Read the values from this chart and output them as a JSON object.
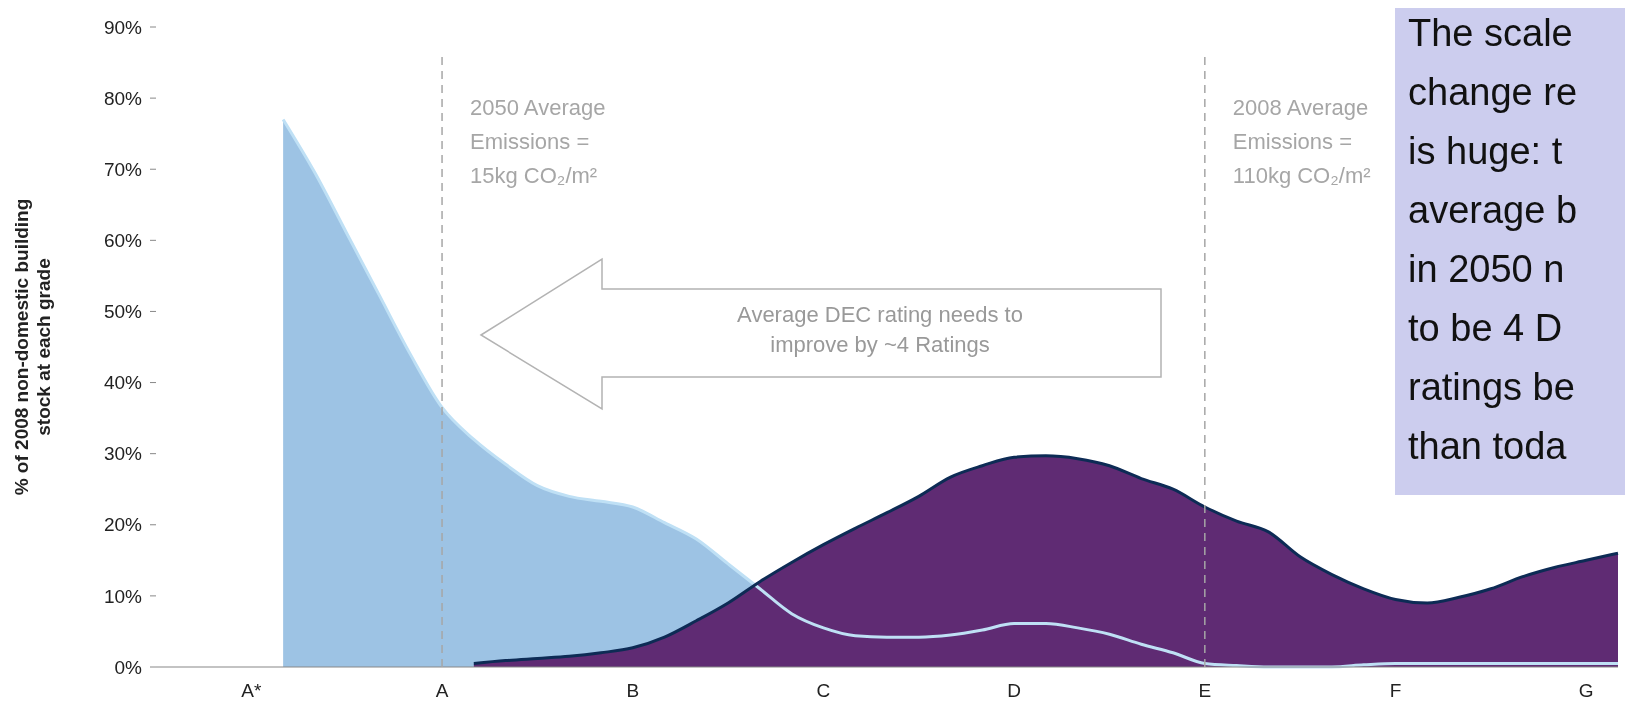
{
  "chart_data": {
    "type": "area",
    "ylabel": "% of 2008 non-domestic building\nstock at each grade",
    "categories": [
      null,
      null,
      null,
      "A*",
      null,
      null,
      null,
      null,
      null,
      "A",
      null,
      null,
      null,
      null,
      null,
      "B",
      null,
      null,
      null,
      null,
      null,
      "C",
      null,
      null,
      null,
      null,
      null,
      "D",
      null,
      null,
      null,
      null,
      null,
      "E",
      null,
      null,
      null,
      null,
      null,
      "F",
      null,
      null,
      null,
      null,
      null,
      "G",
      null
    ],
    "ylim": [
      0,
      90
    ],
    "yticks": [
      {
        "value": 0,
        "label": "0%"
      },
      {
        "value": 10,
        "label": "10%"
      },
      {
        "value": 20,
        "label": "20%"
      },
      {
        "value": 30,
        "label": "30%"
      },
      {
        "value": 40,
        "label": "40%"
      },
      {
        "value": 50,
        "label": "50%"
      },
      {
        "value": 60,
        "label": "60%"
      },
      {
        "value": 70,
        "label": "70%"
      },
      {
        "value": 80,
        "label": "80%"
      },
      {
        "value": 90,
        "label": "90%"
      }
    ],
    "series": [
      {
        "color": "#9dc3e4",
        "values": [
          null,
          null,
          null,
          null,
          77,
          69.5,
          61,
          52.5,
          44,
          36.5,
          32,
          28.5,
          25.5,
          24,
          23.3,
          22.5,
          20.3,
          18,
          14.5,
          11,
          7.5,
          5.5,
          4.4,
          4.2,
          4.2,
          4.5,
          5.2,
          6.1,
          6.1,
          5.5,
          4.6,
          3.2,
          2,
          0.5,
          0.2,
          0,
          0,
          0,
          0.3,
          0.5,
          0.5,
          0.5,
          0.5,
          0.5,
          0.5,
          0.5,
          0.5
        ]
      },
      {
        "color": "#5f2b73",
        "values": [
          null,
          null,
          null,
          null,
          null,
          null,
          null,
          null,
          null,
          null,
          0.5,
          0.9,
          1.2,
          1.5,
          2,
          2.7,
          4.2,
          6.5,
          9,
          12,
          14.7,
          17.2,
          19.5,
          21.7,
          24,
          26.7,
          28.3,
          29.5,
          29.7,
          29.3,
          28.3,
          26.5,
          25,
          22.5,
          20.5,
          19,
          15.5,
          13,
          11,
          9.5,
          9,
          9.8,
          11,
          12.7,
          14,
          15,
          16
        ]
      }
    ],
    "ref_lines": [
      {
        "axis": "x",
        "value": "A",
        "label": "2050 Average\nEmissions =\n15kg CO₂/m²",
        "color": "#a6a6a6",
        "line_style": "dashed"
      },
      {
        "axis": "x",
        "value": "E",
        "label": "2008 Average\nEmissions =\n110kg CO₂/m²",
        "color": "#a6a6a6",
        "line_style": "dashed"
      }
    ],
    "annotations": [
      "Average DEC rating needs to\nimprove by ~4 Ratings",
      "The scale\nchange re\nis huge: t\naverage b\nin 2050 n\nto be 4 D\nratings be\nthan toda"
    ]
  }
}
